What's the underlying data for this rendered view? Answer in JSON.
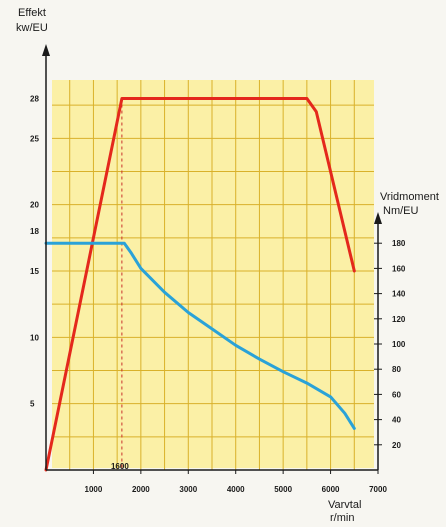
{
  "chart_data": {
    "type": "line",
    "grid": true,
    "x_axis": {
      "title": "Varvtal",
      "unit": "r/min",
      "range": [
        0,
        7000
      ],
      "ticks": [
        1000,
        2000,
        3000,
        4000,
        5000,
        6000,
        7000
      ],
      "marker": {
        "value": 1600,
        "label": "1600"
      }
    },
    "y_left": {
      "title": "Effekt",
      "unit": "kw/EU",
      "range": [
        0,
        30
      ],
      "ticks": [
        5,
        10,
        15,
        18,
        20,
        25,
        28
      ]
    },
    "y_right": {
      "title": "Vridmoment",
      "unit": "Nm/EU",
      "range": [
        0,
        200
      ],
      "ticks": [
        20,
        40,
        60,
        80,
        100,
        120,
        140,
        160,
        180
      ]
    },
    "series": [
      {
        "axis": "left",
        "color": "#e4281c",
        "points": [
          [
            0,
            0
          ],
          [
            1600,
            28
          ],
          [
            2000,
            28
          ],
          [
            5500,
            28
          ],
          [
            5700,
            27
          ],
          [
            6500,
            15
          ]
        ]
      },
      {
        "axis": "right",
        "color": "#2aa2d8",
        "points": [
          [
            0,
            180
          ],
          [
            1400,
            180
          ],
          [
            1650,
            180
          ],
          [
            1800,
            172
          ],
          [
            2000,
            160
          ],
          [
            2500,
            141
          ],
          [
            3000,
            125
          ],
          [
            3500,
            112
          ],
          [
            4000,
            99
          ],
          [
            4500,
            88
          ],
          [
            5000,
            78
          ],
          [
            5500,
            69
          ],
          [
            6000,
            58
          ],
          [
            6300,
            45
          ],
          [
            6500,
            33
          ]
        ]
      }
    ]
  }
}
